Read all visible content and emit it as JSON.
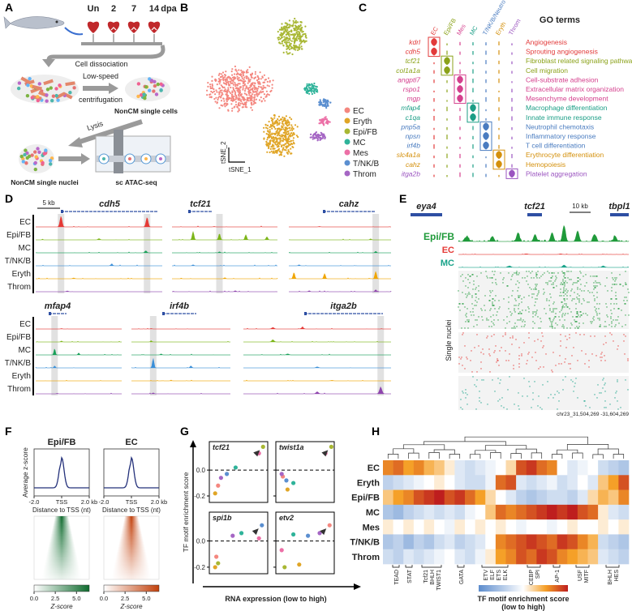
{
  "panel_labels": [
    "A",
    "B",
    "C",
    "D",
    "E",
    "F",
    "G",
    "H"
  ],
  "A": {
    "timepoints": [
      "Un",
      "2",
      "7",
      "14"
    ],
    "timepoint_unit": "dpa",
    "steps": {
      "dissociation": "Cell dissociation",
      "centrifugation": [
        "Low-speed",
        "centrifugation"
      ],
      "cells": "NonCM single cells",
      "lysis": "Lysis",
      "nuclei": "NonCM single nuclei",
      "assay": "sc ATAC-seq"
    }
  },
  "B": {
    "type": "scatter",
    "x_label": "tSNE_1",
    "y_label": "tSNE_2",
    "clusters": [
      {
        "name": "EC",
        "color": "#f4877f"
      },
      {
        "name": "Eryth",
        "color": "#e0a526"
      },
      {
        "name": "Epi/FB",
        "color": "#a8b733"
      },
      {
        "name": "MC",
        "color": "#2fb39a"
      },
      {
        "name": "Mes",
        "color": "#ec6fa6"
      },
      {
        "name": "T/NK/B",
        "color": "#5b8fd0"
      },
      {
        "name": "Throm",
        "color": "#a566c4"
      }
    ]
  },
  "C": {
    "title": "GO terms",
    "columns": [
      {
        "name": "EC",
        "color": "#e23b3b"
      },
      {
        "name": "Epi/FB",
        "color": "#8ba21a"
      },
      {
        "name": "Mes",
        "color": "#d43f8d"
      },
      {
        "name": "MC",
        "color": "#1b9e86"
      },
      {
        "name": "T/NK/B/Neutro",
        "color": "#4a7cc0"
      },
      {
        "name": "Eryth",
        "color": "#d4900c"
      },
      {
        "name": "Throm",
        "color": "#9b55c0"
      }
    ],
    "rows": [
      {
        "gene": "kdrl",
        "term": "Angiogenesis"
      },
      {
        "gene": "cdh5",
        "term": "Sprouting angiogenesis"
      },
      {
        "gene": "tcf21",
        "term": "Fibroblast related signaling pathway"
      },
      {
        "gene": "col1a1a",
        "term": "Cell migration"
      },
      {
        "gene": "angptl7",
        "term": "Cell-substrate adhesion"
      },
      {
        "gene": "rspo1",
        "term": "Extracellular matrix organization"
      },
      {
        "gene": "mgp",
        "term": "Mesenchyme development"
      },
      {
        "gene": "mfap4",
        "term": "Macrophage differentiation"
      },
      {
        "gene": "c1qa",
        "term": "Innate immune response"
      },
      {
        "gene": "pnp5a",
        "term": "Neutrophil chemotaxis"
      },
      {
        "gene": "npsn",
        "term": "Inflammatory response"
      },
      {
        "gene": "irf4b",
        "term": "T cell differentiation"
      },
      {
        "gene": "slc4a1a",
        "term": "Erythrocyte differentiation"
      },
      {
        "gene": "cahz",
        "term": "Hemopoiesis"
      },
      {
        "gene": "itga2b",
        "term": "Platelet aggregation"
      }
    ]
  },
  "D": {
    "scale": "5 kb",
    "genes": [
      "cdh5",
      "tcf21",
      "cahz",
      "mfap4",
      "irf4b",
      "itga2b"
    ],
    "tracks": [
      {
        "name": "EC",
        "color": "#e53935"
      },
      {
        "name": "Epi/FB",
        "color": "#7cb518"
      },
      {
        "name": "MC",
        "color": "#18a058"
      },
      {
        "name": "T/NK/B",
        "color": "#3a8fd8"
      },
      {
        "name": "Eryth",
        "color": "#f0a500"
      },
      {
        "name": "Throm",
        "color": "#8e44ad"
      }
    ]
  },
  "E": {
    "genes": [
      "eya4",
      "tcf21",
      "tbpl1"
    ],
    "scale": "10 kb",
    "tracks": [
      {
        "name": "Epi/FB",
        "color": "#1f9a3a"
      },
      {
        "name": "EC",
        "color": "#e53935"
      },
      {
        "name": "MC",
        "color": "#1aa38a"
      }
    ],
    "y_label": "Single nuclei",
    "region": "chr23_31,504,269 -31,604,269"
  },
  "F": {
    "y_label": "Average z-score",
    "x_label": "Distance to TSS (nt)",
    "xlim": [
      -2,
      2
    ],
    "xticks": [
      {
        "value": -2,
        "label": "-2.0"
      },
      {
        "value": 0,
        "label": "TSS"
      },
      {
        "value": 2,
        "label": "2.0 kb"
      }
    ],
    "groups": [
      {
        "name": "Epi/FB",
        "color": "#0f6b2e"
      },
      {
        "name": "EC",
        "color": "#c2410c"
      }
    ],
    "colorbar": {
      "label": "Z-score",
      "lim": [
        0,
        6.5
      ],
      "ticks": [
        {
          "value": 0,
          "label": "0.0"
        },
        2.5,
        {
          "value": 5,
          "label": "5.0"
        }
      ]
    }
  },
  "G": {
    "type": "scatter",
    "y_label": "TF motif enrichment score",
    "x_label": "RNA expression (low to high)",
    "xlim": [
      0,
      1
    ],
    "ylim": [
      -0.25,
      0.22
    ],
    "yticks": [
      {
        "value": 0,
        "label": "0.0"
      },
      -0.2
    ],
    "subplots": [
      {
        "title": "tcf21",
        "x": [
          0.15,
          0.1,
          0.92,
          0.45,
          0.85,
          0.3,
          0.2
        ],
        "y": [
          -0.12,
          -0.18,
          0.18,
          0.02,
          0.13,
          -0.03,
          -0.06
        ]
      },
      {
        "title": "twist1a",
        "x": [
          0.12,
          0.2,
          0.95,
          0.3,
          0.85,
          0.18,
          0.1
        ],
        "y": [
          -0.05,
          -0.15,
          0.18,
          -0.1,
          0.13,
          -0.08,
          -0.03
        ]
      },
      {
        "title": "spi1b",
        "x": [
          0.12,
          0.1,
          0.15,
          0.55,
          0.85,
          0.9,
          0.4
        ],
        "y": [
          -0.12,
          -0.2,
          -0.17,
          0.06,
          0.02,
          0.12,
          0.04
        ]
      },
      {
        "title": "etv2",
        "x": [
          0.92,
          0.4,
          0.15,
          0.3,
          0.1,
          0.55,
          0.75
        ],
        "y": [
          0.12,
          -0.18,
          -0.2,
          0.05,
          -0.07,
          0.04,
          0.06
        ]
      }
    ]
  },
  "H": {
    "type": "heatmap",
    "rows": [
      "EC",
      "Eryth",
      "Epi/FB",
      "MC",
      "Mes",
      "T/NK/B",
      "Throm"
    ],
    "vlim": [
      -1,
      1
    ],
    "values": [
      [
        0.6,
        0.7,
        0.5,
        0.6,
        0.4,
        0.3,
        0.1,
        -0.2,
        -0.3,
        -0.2,
        -0.1,
        0.0,
        0.2,
        0.8,
        0.9,
        0.7,
        0.6,
        0.0,
        -0.2,
        -0.1,
        0.0,
        -0.3,
        -0.4,
        -0.5
      ],
      [
        -0.4,
        -0.3,
        -0.2,
        -0.1,
        0.0,
        0.1,
        0.0,
        -0.2,
        -0.3,
        -0.3,
        -0.1,
        0.7,
        0.8,
        -0.2,
        -0.3,
        -0.2,
        -0.1,
        -0.3,
        -0.2,
        0.0,
        -0.2,
        0.3,
        0.5,
        0.8
      ],
      [
        0.3,
        0.5,
        0.6,
        0.8,
        0.9,
        1.0,
        0.8,
        0.9,
        0.7,
        0.5,
        0.2,
        0.0,
        -0.2,
        -0.4,
        -0.5,
        -0.4,
        -0.3,
        -0.3,
        -0.4,
        -0.2,
        0.2,
        0.4,
        0.3,
        0.6
      ],
      [
        -0.5,
        -0.6,
        -0.4,
        -0.3,
        -0.2,
        -0.3,
        -0.2,
        -0.3,
        -0.1,
        0.0,
        0.3,
        0.7,
        0.6,
        0.7,
        0.8,
        0.9,
        1.0,
        0.9,
        1.0,
        0.8,
        0.7,
        0.1,
        -0.2,
        -0.3
      ],
      [
        0.1,
        0.0,
        0.1,
        0.0,
        0.1,
        0.0,
        -0.1,
        0.1,
        0.0,
        0.1,
        0.0,
        0.1,
        0.0,
        -0.1,
        0.0,
        0.0,
        -0.1,
        0.0,
        0.1,
        0.0,
        0.0,
        0.1,
        0.0,
        0.1
      ],
      [
        -0.5,
        -0.4,
        -0.6,
        -0.4,
        -0.5,
        -0.3,
        -0.2,
        -0.4,
        -0.3,
        -0.2,
        0.0,
        0.6,
        0.7,
        0.8,
        0.9,
        0.8,
        0.7,
        0.9,
        0.8,
        0.6,
        0.4,
        -0.3,
        -0.4,
        -0.5
      ],
      [
        -0.3,
        -0.4,
        -0.2,
        -0.3,
        -0.2,
        -0.1,
        0.0,
        -0.2,
        -0.3,
        -0.1,
        0.1,
        0.5,
        0.6,
        0.8,
        0.7,
        0.9,
        0.8,
        0.6,
        0.5,
        0.4,
        0.3,
        -0.2,
        -0.3,
        -0.4
      ]
    ],
    "groups": [
      [
        "TEAD"
      ],
      [
        "STAT"
      ],
      [
        "Tcf21",
        "BHLH",
        "TWIST1"
      ],
      [
        "GATA"
      ],
      [
        "ETV",
        "ELF",
        "ETS",
        "ELK"
      ],
      [
        "CEBP",
        "SPI"
      ],
      [
        "AP-1"
      ],
      [
        "USF",
        "MITF"
      ],
      [
        "BHLH",
        "HES"
      ]
    ],
    "colorbar": {
      "label": "TF motif enrichment score",
      "sublabel": "(low to high)"
    }
  }
}
